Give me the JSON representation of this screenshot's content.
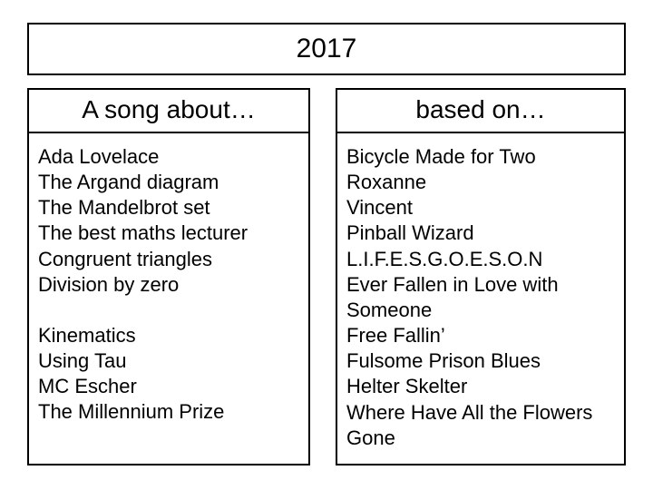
{
  "title": "2017",
  "colors": {
    "border": "#000000",
    "background": "#ffffff",
    "text": "#000000"
  },
  "typography": {
    "title_fontsize": 30,
    "header_fontsize": 28,
    "body_fontsize": 22,
    "font_family": "Arial"
  },
  "left": {
    "header": "A song about…",
    "group1": [
      "Ada Lovelace",
      "The Argand diagram",
      "The Mandelbrot set",
      "The best maths lecturer",
      "Congruent triangles",
      "Division by zero"
    ],
    "group2": [
      "Kinematics",
      "Using Tau",
      "MC Escher",
      "The Millennium Prize"
    ]
  },
  "right": {
    "header": "based on…",
    "items": [
      "Bicycle Made for Two",
      "Roxanne",
      "Vincent",
      "Pinball Wizard",
      "L.I.F.E.S.G.O.E.S.O.N",
      "Ever Fallen in Love with Someone",
      "Free Fallin’",
      "Fulsome Prison Blues",
      "Helter Skelter",
      "Where Have All the Flowers Gone"
    ]
  }
}
